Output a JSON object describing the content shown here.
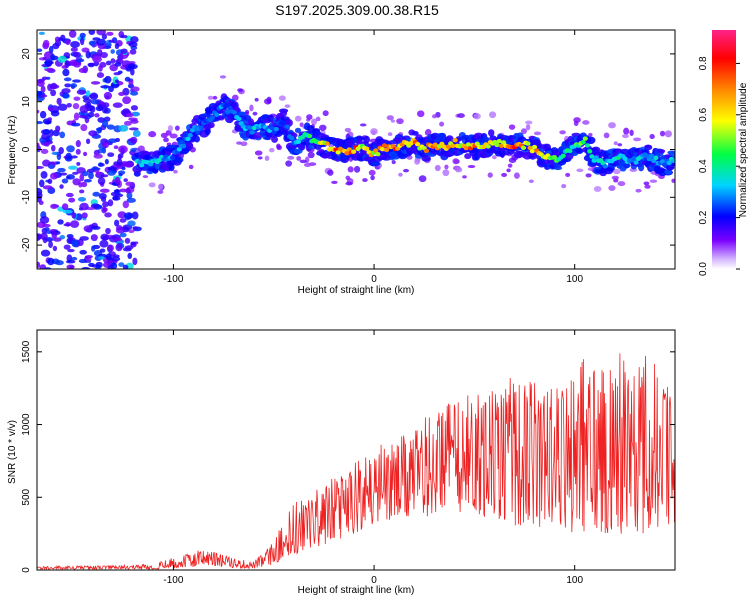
{
  "title": "S197.2025.309.00.38.R15",
  "charts": [
    {
      "type": "heatmap",
      "name": "spectrogram",
      "xlabel": "Height of straight line (km)",
      "ylabel": "Frequency (Hz)",
      "xlim": [
        -168,
        150
      ],
      "ylim": [
        -25,
        25
      ],
      "xticks": [
        -100,
        0,
        100
      ],
      "yticks": [
        -20,
        -10,
        0,
        10,
        20
      ],
      "colorbar": {
        "label": "Normalized spectral amplitude",
        "range": [
          0,
          0.93
        ],
        "ticks": [
          "0.0",
          "0.2",
          "0.4",
          "0.6",
          "0.8"
        ],
        "tick_values": [
          0,
          0.2,
          0.4,
          0.6,
          0.8
        ],
        "gradient": [
          "#ffffff",
          "#7a00ff",
          "#0000ff",
          "#00d4ff",
          "#00ff00",
          "#ffff00",
          "#ff8800",
          "#ff0000",
          "#ff2277"
        ]
      },
      "ridge": {
        "x": [
          -118,
          -110,
          -100,
          -95,
          -90,
          -85,
          -80,
          -75,
          -70,
          -65,
          -60,
          -55,
          -50,
          -45,
          -40,
          -35,
          -30,
          -25,
          -20,
          -15,
          -10,
          -5,
          0,
          5,
          10,
          15,
          20,
          25,
          30,
          35,
          40,
          45,
          50,
          55,
          60,
          65,
          70,
          75,
          80,
          85,
          90,
          95,
          100,
          105,
          110,
          115,
          120,
          125,
          130,
          135,
          140,
          145,
          150
        ],
        "y": [
          -3,
          -2.5,
          -1.5,
          1,
          4,
          5,
          7,
          9,
          8,
          5,
          4,
          5,
          4,
          6,
          1,
          3,
          2,
          1,
          0,
          -0.5,
          0,
          0.5,
          -1,
          0.5,
          0,
          1,
          1.5,
          0,
          1,
          0.5,
          1.5,
          1,
          0.5,
          1,
          1.5,
          1,
          0.5,
          1,
          0,
          -1.5,
          -2,
          -1,
          1,
          2,
          -2,
          -3,
          -1.5,
          -2,
          -2.5,
          -1.5,
          -2,
          -3,
          -2
        ],
        "amplitude": [
          0.35,
          0.35,
          0.3,
          0.3,
          0.32,
          0.3,
          0.28,
          0.3,
          0.28,
          0.32,
          0.35,
          0.3,
          0.3,
          0.25,
          0.3,
          0.4,
          0.5,
          0.6,
          0.75,
          0.7,
          0.8,
          0.6,
          0.65,
          0.7,
          0.85,
          0.6,
          0.7,
          0.65,
          0.7,
          0.6,
          0.7,
          0.65,
          0.75,
          0.6,
          0.65,
          0.7,
          0.9,
          0.6,
          0.7,
          0.6,
          0.45,
          0.4,
          0.45,
          0.5,
          0.35,
          0.35,
          0.4,
          0.35,
          0.35,
          0.35,
          0.35,
          0.3,
          0.35
        ]
      },
      "noise_region": {
        "x": [
          -168,
          -118
        ],
        "amplitude": [
          0.1,
          0.3
        ]
      }
    },
    {
      "type": "line",
      "name": "snr",
      "xlabel": "Height of straight line (km)",
      "ylabel": "SNR (10 * v/v)",
      "xlim": [
        -168,
        150
      ],
      "ylim": [
        0,
        1650
      ],
      "xticks": [
        -100,
        0,
        100
      ],
      "yticks": [
        0,
        500,
        1000,
        1500
      ],
      "color": "#ee2222",
      "envelope": {
        "x": [
          -168,
          -130,
          -110,
          -100,
          -90,
          -85,
          -80,
          -70,
          -60,
          -55,
          -50,
          -45,
          -40,
          -30,
          -20,
          -10,
          0,
          10,
          20,
          30,
          40,
          50,
          60,
          70,
          80,
          90,
          100,
          110,
          120,
          130,
          140,
          150
        ],
        "low": [
          5,
          5,
          5,
          10,
          20,
          30,
          30,
          15,
          10,
          20,
          40,
          80,
          100,
          150,
          200,
          250,
          320,
          340,
          350,
          380,
          400,
          380,
          350,
          300,
          300,
          280,
          250,
          250,
          250,
          250,
          250,
          250
        ],
        "high": [
          25,
          30,
          40,
          90,
          120,
          150,
          130,
          80,
          60,
          120,
          200,
          350,
          480,
          550,
          650,
          750,
          850,
          900,
          950,
          1150,
          1200,
          1250,
          1300,
          1350,
          1300,
          1250,
          1400,
          1550,
          1500,
          1500,
          1450,
          1150
        ]
      }
    }
  ]
}
